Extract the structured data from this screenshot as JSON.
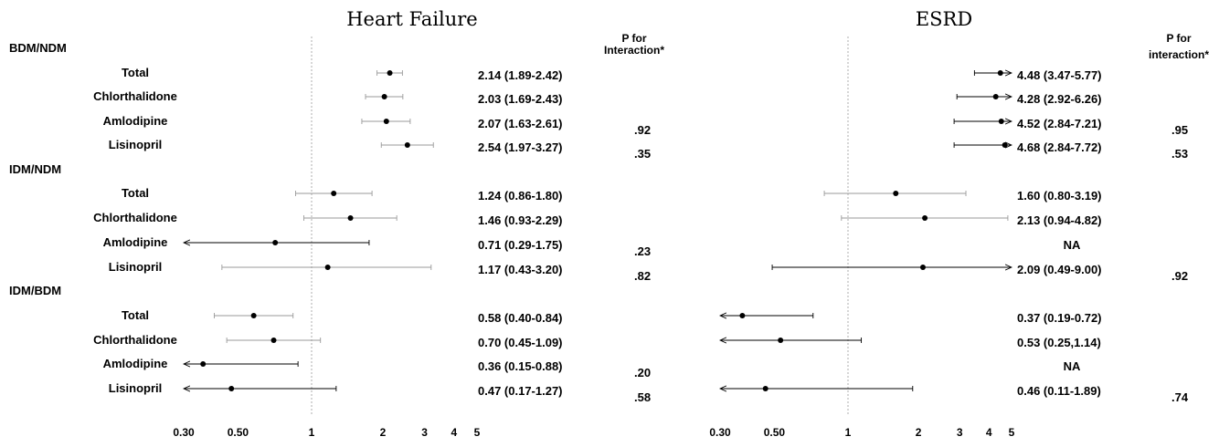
{
  "chart_data": [
    {
      "type": "forest",
      "title": "Heart Failure",
      "p_header": [
        "P for",
        "Interaction*"
      ],
      "x_scale": "log",
      "xlim": [
        0.3,
        5
      ],
      "reference_line": 1,
      "ticks": [
        {
          "value": 0.3,
          "label": "0.30"
        },
        {
          "value": 0.5,
          "label": "0.50"
        },
        {
          "value": 1,
          "label": "1"
        },
        {
          "value": 2,
          "label": "2"
        },
        {
          "value": 3,
          "label": "3"
        },
        {
          "value": 4,
          "label": "4"
        },
        {
          "value": 5,
          "label": "5"
        }
      ],
      "groups": [
        {
          "name": "BDM/NDM",
          "rows": [
            {
              "label": "Total",
              "est": 2.14,
              "lo": 1.89,
              "hi": 2.42,
              "text": "2.14 (1.89-2.42)",
              "p": ""
            },
            {
              "label": "Chlorthalidone",
              "est": 2.03,
              "lo": 1.69,
              "hi": 2.43,
              "text": "2.03 (1.69-2.43)",
              "p": ""
            },
            {
              "label": "Amlodipine",
              "est": 2.07,
              "lo": 1.63,
              "hi": 2.61,
              "text": "2.07 (1.63-2.61)",
              "p": ".92"
            },
            {
              "label": "Lisinopril",
              "est": 2.54,
              "lo": 1.97,
              "hi": 3.27,
              "text": "2.54 (1.97-3.27)",
              "p": ".35"
            }
          ]
        },
        {
          "name": "IDM/NDM",
          "rows": [
            {
              "label": "Total",
              "est": 1.24,
              "lo": 0.86,
              "hi": 1.8,
              "text": "1.24 (0.86-1.80)",
              "p": ""
            },
            {
              "label": "Chlorthalidone",
              "est": 1.46,
              "lo": 0.93,
              "hi": 2.29,
              "text": "1.46 (0.93-2.29)",
              "p": ""
            },
            {
              "label": "Amlodipine",
              "est": 0.71,
              "lo": 0.29,
              "hi": 1.75,
              "text": "0.71 (0.29-1.75)",
              "p": ".23"
            },
            {
              "label": "Lisinopril",
              "est": 1.17,
              "lo": 0.43,
              "hi": 3.2,
              "text": "1.17 (0.43-3.20)",
              "p": ".82"
            }
          ]
        },
        {
          "name": "IDM/BDM",
          "rows": [
            {
              "label": "Total",
              "est": 0.58,
              "lo": 0.4,
              "hi": 0.84,
              "text": "0.58 (0.40-0.84)",
              "p": ""
            },
            {
              "label": "Chlorthalidone",
              "est": 0.7,
              "lo": 0.45,
              "hi": 1.09,
              "text": "0.70 (0.45-1.09)",
              "p": ""
            },
            {
              "label": "Amlodipine",
              "est": 0.36,
              "lo": 0.15,
              "hi": 0.88,
              "text": "0.36 (0.15-0.88)",
              "p": ".20"
            },
            {
              "label": "Lisinopril",
              "est": 0.47,
              "lo": 0.17,
              "hi": 1.27,
              "text": "0.47 (0.17-1.27)",
              "p": ".58"
            }
          ]
        }
      ]
    },
    {
      "type": "forest",
      "title": "ESRD",
      "p_header": [
        "P for",
        "interaction*"
      ],
      "x_scale": "log",
      "xlim": [
        0.3,
        5
      ],
      "reference_line": 1,
      "ticks": [
        {
          "value": 0.3,
          "label": "0.30"
        },
        {
          "value": 0.5,
          "label": "0.50"
        },
        {
          "value": 1,
          "label": "1"
        },
        {
          "value": 2,
          "label": "2"
        },
        {
          "value": 3,
          "label": "3"
        },
        {
          "value": 4,
          "label": "4"
        },
        {
          "value": 5,
          "label": "5"
        }
      ],
      "groups": [
        {
          "name": "BDM/NDM",
          "rows": [
            {
              "label": "Total",
              "est": 4.48,
              "lo": 3.47,
              "hi": 5.77,
              "text": "4.48 (3.47-5.77)",
              "p": ""
            },
            {
              "label": "Chlorthalidone",
              "est": 4.28,
              "lo": 2.92,
              "hi": 6.26,
              "text": "4.28 (2.92-6.26)",
              "p": ""
            },
            {
              "label": "Amlodipine",
              "est": 4.52,
              "lo": 2.84,
              "hi": 7.21,
              "text": "4.52 (2.84-7.21)",
              "p": ".95"
            },
            {
              "label": "Lisinopril",
              "est": 4.68,
              "lo": 2.84,
              "hi": 7.72,
              "text": "4.68 (2.84-7.72)",
              "p": ".53"
            }
          ]
        },
        {
          "name": "IDM/NDM",
          "rows": [
            {
              "label": "Total",
              "est": 1.6,
              "lo": 0.8,
              "hi": 3.19,
              "text": "1.60 (0.80-3.19)",
              "p": ""
            },
            {
              "label": "Chlorthalidone",
              "est": 2.13,
              "lo": 0.94,
              "hi": 4.82,
              "text": "2.13 (0.94-4.82)",
              "p": ""
            },
            {
              "label": "Amlodipine",
              "est": null,
              "lo": null,
              "hi": null,
              "text": "NA",
              "p": ""
            },
            {
              "label": "Lisinopril",
              "est": 2.09,
              "lo": 0.49,
              "hi": 9.0,
              "text": "2.09 (0.49-9.00)",
              "p": ".92"
            }
          ]
        },
        {
          "name": "IDM/BDM",
          "rows": [
            {
              "label": "Total",
              "est": 0.37,
              "lo": 0.19,
              "hi": 0.72,
              "text": "0.37 (0.19-0.72)",
              "p": ""
            },
            {
              "label": "Chlorthalidone",
              "est": 0.53,
              "lo": 0.25,
              "hi": 1.14,
              "text": "0.53 (0.25,1.14)",
              "p": ""
            },
            {
              "label": "Amlodipine",
              "est": null,
              "lo": null,
              "hi": null,
              "text": "NA",
              "p": ""
            },
            {
              "label": "Lisinopril",
              "est": 0.46,
              "lo": 0.11,
              "hi": 1.89,
              "text": "0.46 (0.11-1.89)",
              "p": ".74"
            }
          ]
        }
      ]
    }
  ]
}
